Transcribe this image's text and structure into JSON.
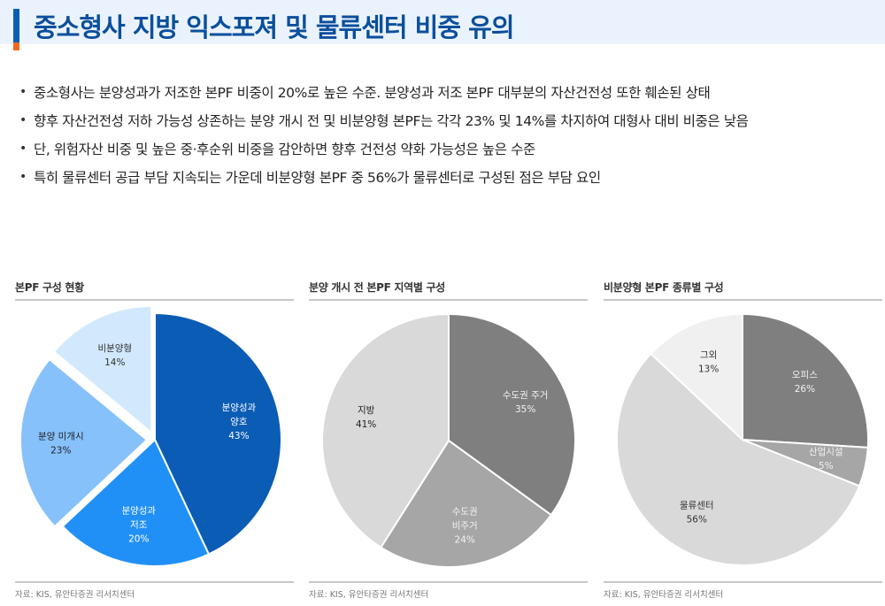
{
  "header": {
    "title": "중소형사 지방 익스포져 및 물류센터 비중 유의",
    "accent_colors": {
      "blue": "#0b5cb4",
      "orange": "#f26a1b",
      "background": "#eaf3fd"
    }
  },
  "bullets": [
    "중소형사는 분양성과가 저조한 본PF 비중이 20%로 높은 수준. 분양성과 저조 본PF 대부분의 자산건전성 또한 훼손된 상태",
    "향후 자산건전성 저하 가능성 상존하는 분양 개시 전 및 비분양형 본PF는 각각 23% 및 14%를 차지하여 대형사 대비 비중은 낮음",
    "단, 위험자산 비중 및 높은 중·후순위 비중을 감안하면 향후 건전성 약화 가능성은 높은 수준",
    "특히 물류센터 공급 부담 지속되는 가운데 비분양형 본PF 중 56%가 물류센터로 구성된 점은 부담 요인"
  ],
  "panels": [
    {
      "title": "본PF 구성 현황",
      "source": "자료: KIS, 유안타증권 리서치센터"
    },
    {
      "title": "분양 개시 전 본PF 지역별 구성",
      "source": "자료: KIS, 유안타증권 리서치센터"
    },
    {
      "title": "비분양형 본PF 종류별 구성",
      "source": "자료: KIS, 유안타증권 리서치센터"
    }
  ],
  "chart_data": [
    {
      "type": "pie",
      "title": "본PF 구성 현황",
      "categories": [
        "분양성과 양호",
        "분양성과 저조",
        "분양 미개시",
        "비분양형"
      ],
      "values": [
        43,
        20,
        23,
        14
      ],
      "unit": "%",
      "colors": [
        "#0b5cb4",
        "#2190f6",
        "#86c1fb",
        "#d2e8fd"
      ],
      "label_colors": [
        "#ffffff",
        "#ffffff",
        "#222222",
        "#333333"
      ],
      "label_lines": [
        [
          "분양성과",
          "양호",
          "43%"
        ],
        [
          "분양성과",
          "저조",
          "20%"
        ],
        [
          "분양 미개시",
          "23%"
        ],
        [
          "비분양형",
          "14%"
        ]
      ],
      "exploded": [
        false,
        false,
        true,
        true
      ],
      "start_angle_deg": 0,
      "direction": "clockwise",
      "legend": "none (inline labels)"
    },
    {
      "type": "pie",
      "title": "분양 개시 전 본PF 지역별 구성",
      "categories": [
        "수도권 주거",
        "수도권 비주거",
        "지방"
      ],
      "values": [
        35,
        24,
        41
      ],
      "unit": "%",
      "colors": [
        "#7f7f7f",
        "#a6a6a6",
        "#d9d9d9"
      ],
      "label_colors": [
        "#f2f2f2",
        "#f2f2f2",
        "#222222"
      ],
      "label_lines": [
        [
          "수도권 주거",
          "35%"
        ],
        [
          "수도권",
          "비주거",
          "24%"
        ],
        [
          "지방",
          "41%"
        ]
      ],
      "exploded": [
        false,
        false,
        false
      ],
      "start_angle_deg": 0,
      "direction": "clockwise",
      "legend": "none (inline labels)"
    },
    {
      "type": "pie",
      "title": "비분양형 본PF 종류별 구성",
      "categories": [
        "오피스",
        "산업시설",
        "물류센터",
        "그외"
      ],
      "values": [
        26,
        5,
        56,
        13
      ],
      "unit": "%",
      "colors": [
        "#7f7f7f",
        "#a6a6a6",
        "#d9d9d9",
        "#f0f0f0"
      ],
      "label_colors": [
        "#f2f2f2",
        "#f2f2f2",
        "#333333",
        "#333333"
      ],
      "label_lines": [
        [
          "오피스",
          "26%"
        ],
        [
          "산업시설",
          "5%"
        ],
        [
          "물류센터",
          "56%"
        ],
        [
          "그외",
          "13%"
        ]
      ],
      "exploded": [
        false,
        false,
        false,
        false
      ],
      "start_angle_deg": 0,
      "direction": "clockwise",
      "legend": "none (inline labels)"
    }
  ]
}
